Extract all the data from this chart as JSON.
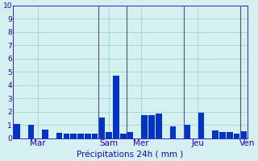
{
  "ylabel_values": [
    0,
    1,
    2,
    3,
    4,
    5,
    6,
    7,
    8,
    9,
    10
  ],
  "ylim": [
    0,
    10
  ],
  "bar_color": "#0033cc",
  "background_color": "#d4f0f0",
  "grid_color": "#99cccc",
  "xlabel": "Précipitations 24h ( mm )",
  "day_labels": [
    "Mar",
    "Sam",
    "Mer",
    "Jeu",
    "Ven"
  ],
  "vline_color": "#555577",
  "bar_values": [
    1.1,
    0.0,
    1.0,
    0.0,
    0.65,
    0.0,
    0.42,
    0.38,
    0.38,
    0.38,
    0.38,
    0.38,
    1.55,
    0.5,
    4.75,
    0.35,
    0.5,
    0.0,
    1.75,
    1.75,
    1.85,
    0.0,
    0.88,
    0.0,
    1.0,
    0.0,
    1.95,
    0.0,
    0.6,
    0.5,
    0.5,
    0.38,
    0.55
  ],
  "vline_positions": [
    11.5,
    15.5,
    23.5,
    31.5
  ],
  "day_tick_positions": [
    3.0,
    13.0,
    17.5,
    25.5,
    32.5
  ],
  "figsize": [
    3.2,
    2.0
  ],
  "dpi": 100,
  "tick_color": "#2200bb",
  "label_color": "#2200bb"
}
